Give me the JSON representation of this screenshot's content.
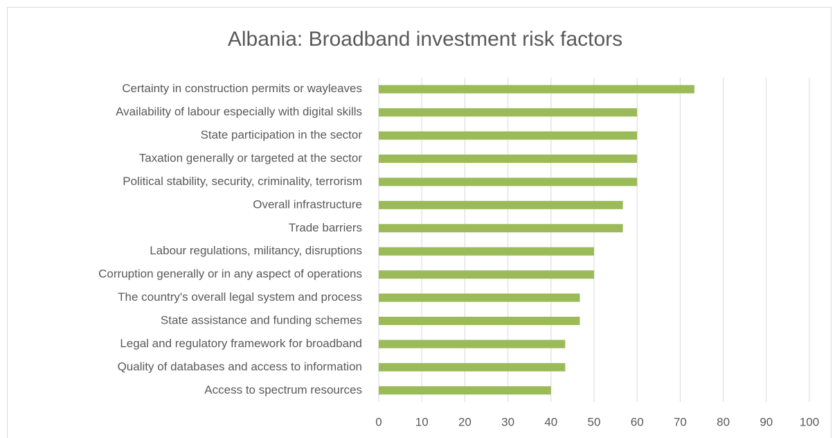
{
  "chart_data": {
    "type": "bar",
    "orientation": "horizontal",
    "title": "Albania: Broadband investment risk factors",
    "categories": [
      "Certainty in construction permits or wayleaves",
      "Availability of labour especially with digital skills",
      "State participation in the sector",
      "Taxation generally or targeted at the sector",
      "Political stability, security, criminality, terrorism",
      "Overall infrastructure",
      "Trade barriers",
      "Labour regulations, militancy, disruptions",
      "Corruption generally or in any aspect of operations",
      "The country's overall legal system and process ",
      "State assistance and funding schemes",
      "Legal and regulatory framework for broadband",
      "Quality of databases and access to information",
      "Access to spectrum resources"
    ],
    "values": [
      73.3,
      60,
      60,
      60,
      60,
      56.7,
      56.7,
      50,
      50,
      46.7,
      46.7,
      43.3,
      43.3,
      40
    ],
    "color": "#9bbb59",
    "xlim": [
      0,
      100
    ],
    "xticks": [
      0,
      10,
      20,
      30,
      40,
      50,
      60,
      70,
      80,
      90,
      100
    ],
    "grid": true
  }
}
